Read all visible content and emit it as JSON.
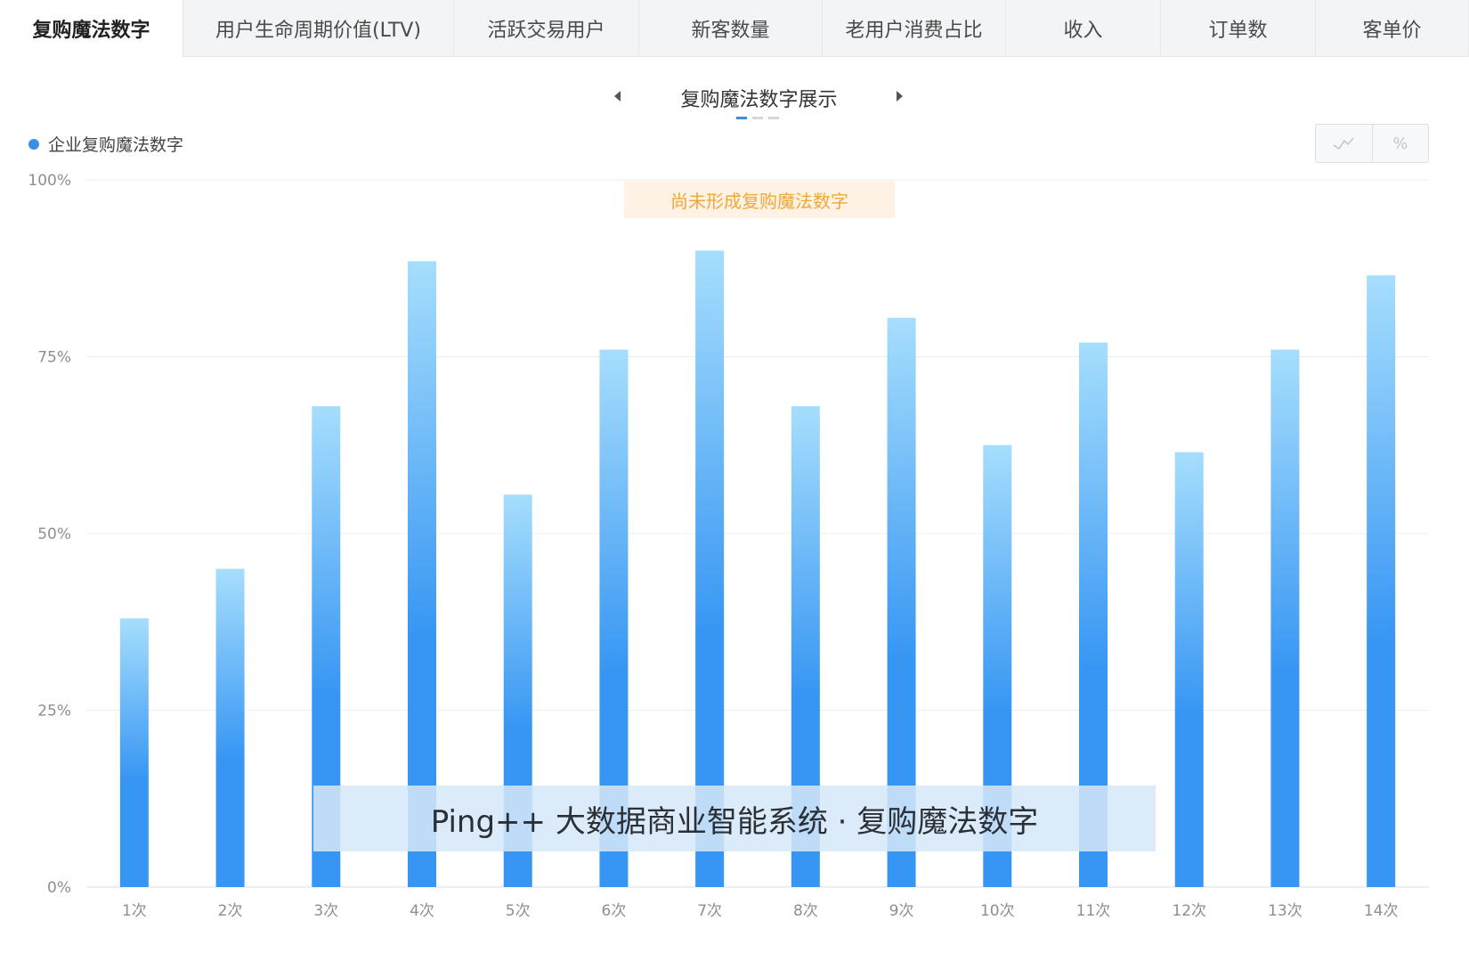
{
  "tabs": [
    {
      "label": "复购魔法数字",
      "width": 206,
      "active": true
    },
    {
      "label": "用户生命周期价值(LTV)",
      "width": 304
    },
    {
      "label": "活跃交易用户",
      "width": 208
    },
    {
      "label": "新客数量",
      "width": 206
    },
    {
      "label": "老用户消费占比",
      "width": 206
    },
    {
      "label": "收入",
      "width": 174
    },
    {
      "label": "订单数",
      "width": 174
    },
    {
      "label": "客单价",
      "width": 172
    }
  ],
  "carousel": {
    "title": "复购魔法数字展示",
    "left_icon": "caret-left-icon",
    "right_icon": "caret-right-icon"
  },
  "toggle": {
    "line_icon": "line-chart-icon",
    "percent_label": "%"
  },
  "notice": "尚未形成复购魔法数字",
  "watermark": "Ping++ 大数据商业智能系统 · 复购魔法数字",
  "colors": {
    "accent": "#3a8ee6",
    "bar_top": "#a6defd",
    "bar_bottom": "#3796f3",
    "notice_bg": "#fdf2e3",
    "notice_text": "#f2a73b"
  },
  "chart_data": {
    "type": "bar",
    "categories": [
      "1次",
      "2次",
      "3次",
      "4次",
      "5次",
      "6次",
      "7次",
      "8次",
      "9次",
      "10次",
      "11次",
      "12次",
      "13次",
      "14次"
    ],
    "series": [
      {
        "name": "企业复购魔法数字",
        "values": [
          38,
          45,
          68,
          88.5,
          55.5,
          76,
          90,
          68,
          80.5,
          62.5,
          77,
          61.5,
          76,
          86.5
        ]
      }
    ],
    "yticks": [
      "0%",
      "25%",
      "50%",
      "75%",
      "100%"
    ],
    "ylim": [
      0,
      100
    ],
    "grid": true,
    "legend": "top-left"
  }
}
